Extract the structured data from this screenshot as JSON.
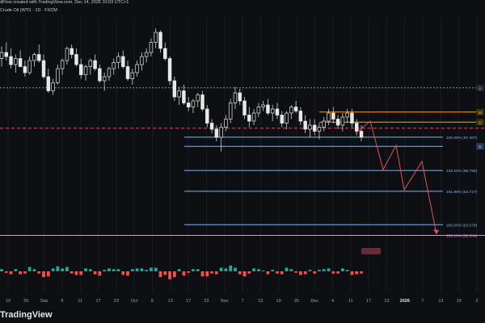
{
  "header": {
    "credit": "dFlow created with TradingView.com, Dec 14, 2025 10:03 UTC+1",
    "symbol": "Crude Oil (WTI) · 1D · FXCM"
  },
  "watermark": "TradingView",
  "colors": {
    "background": "#0e0f12",
    "bull": "#e8e8e8",
    "bear": "#e8e8e8",
    "wick": "#cfcfcf",
    "fib_blue": "#7fb3f5",
    "fib_purple": "#c49bf5",
    "orange": "#f5a623",
    "red_dashed": "#e0505a",
    "projection": "#e0505a",
    "vol_green": "#26a69a",
    "vol_red": "#ef5350"
  },
  "chart_data": {
    "type": "candlestick",
    "x_tick_labels": [
      "19",
      "25",
      "Sep",
      "8",
      "11",
      "17",
      "23",
      "Oct",
      "8",
      "13",
      "17",
      "23",
      "Nov",
      "7",
      "13",
      "19",
      "25",
      "Dec",
      "4",
      "11",
      "17",
      "23",
      "2026",
      "7",
      "13",
      "19",
      "2"
    ],
    "price_levels": [
      {
        "label": "B",
        "value": 59.85,
        "style": "dotted",
        "color": "gray"
      },
      {
        "label": "W",
        "value": 58.65,
        "style": "solid",
        "color": "orange"
      },
      {
        "label": "D",
        "value": 58.15,
        "style": "solid",
        "color": "orange"
      },
      {
        "label": "",
        "value": 57.85,
        "style": "dashed",
        "color": "red"
      },
      {
        "label": "100.00% (57.407)",
        "value": 57.407,
        "style": "solid",
        "color": "blue"
      },
      {
        "label": "B",
        "value": 56.95,
        "style": "solid",
        "color": "blue"
      },
      {
        "label": "138.20% (55.755)",
        "value": 55.755,
        "style": "solid",
        "color": "blue"
      },
      {
        "label": "161.80% (54.727)",
        "value": 54.727,
        "style": "solid",
        "color": "blue"
      },
      {
        "label": "200.00% (53.070)",
        "value": 53.07,
        "style": "solid",
        "color": "blue"
      },
      {
        "label": "138.20% (52.540)",
        "value": 52.54,
        "style": "solid",
        "color": "purple"
      }
    ],
    "candles": [
      [
        61.3,
        61.9,
        60.9,
        61.6
      ],
      [
        61.6,
        62.1,
        61.2,
        61.4
      ],
      [
        61.4,
        61.8,
        60.8,
        61.0
      ],
      [
        61.0,
        61.5,
        60.6,
        61.3
      ],
      [
        61.3,
        61.7,
        60.9,
        60.9
      ],
      [
        60.9,
        61.2,
        60.4,
        60.6
      ],
      [
        60.6,
        61.4,
        60.5,
        61.2
      ],
      [
        61.2,
        61.6,
        60.9,
        61.5
      ],
      [
        61.5,
        62.0,
        61.1,
        61.2
      ],
      [
        61.2,
        61.5,
        60.3,
        60.4
      ],
      [
        60.4,
        60.8,
        59.6,
        59.7
      ],
      [
        59.7,
        60.3,
        59.5,
        60.1
      ],
      [
        60.1,
        61.0,
        60.0,
        60.8
      ],
      [
        60.8,
        61.3,
        60.5,
        61.2
      ],
      [
        61.2,
        61.9,
        61.0,
        61.8
      ],
      [
        61.8,
        62.0,
        61.3,
        61.5
      ],
      [
        61.5,
        61.8,
        60.9,
        61.0
      ],
      [
        61.0,
        61.3,
        60.3,
        60.5
      ],
      [
        60.5,
        61.0,
        60.2,
        60.9
      ],
      [
        60.9,
        61.3,
        60.5,
        61.2
      ],
      [
        61.2,
        61.5,
        60.7,
        60.8
      ],
      [
        60.8,
        61.0,
        60.1,
        60.2
      ],
      [
        60.2,
        60.6,
        59.7,
        60.4
      ],
      [
        60.4,
        60.9,
        60.2,
        60.8
      ],
      [
        60.8,
        61.3,
        60.5,
        61.1
      ],
      [
        61.1,
        61.6,
        60.8,
        61.4
      ],
      [
        61.4,
        61.7,
        60.8,
        60.9
      ],
      [
        60.9,
        61.2,
        60.2,
        60.3
      ],
      [
        60.3,
        60.8,
        60.0,
        60.6
      ],
      [
        60.6,
        61.2,
        60.4,
        61.0
      ],
      [
        61.0,
        61.6,
        60.7,
        61.4
      ],
      [
        61.4,
        61.8,
        61.1,
        61.6
      ],
      [
        61.6,
        62.3,
        61.4,
        62.1
      ],
      [
        62.1,
        62.8,
        61.8,
        62.6
      ],
      [
        62.6,
        62.7,
        61.6,
        61.8
      ],
      [
        61.8,
        62.1,
        61.2,
        61.3
      ],
      [
        61.3,
        61.4,
        60.0,
        60.2
      ],
      [
        60.2,
        60.4,
        59.2,
        59.4
      ],
      [
        59.4,
        59.9,
        59.0,
        59.7
      ],
      [
        59.7,
        60.0,
        59.0,
        59.1
      ],
      [
        59.1,
        59.4,
        58.7,
        58.9
      ],
      [
        58.9,
        59.3,
        58.6,
        59.2
      ],
      [
        59.2,
        59.6,
        58.9,
        59.5
      ],
      [
        59.5,
        59.7,
        58.7,
        58.8
      ],
      [
        58.8,
        59.0,
        57.9,
        58.1
      ],
      [
        58.1,
        58.3,
        57.6,
        57.8
      ],
      [
        57.8,
        58.0,
        57.2,
        57.4
      ],
      [
        57.4,
        58.1,
        56.7,
        57.9
      ],
      [
        57.9,
        58.5,
        57.7,
        58.3
      ],
      [
        58.3,
        59.3,
        58.1,
        59.1
      ],
      [
        59.1,
        59.9,
        58.8,
        59.6
      ],
      [
        59.6,
        59.8,
        59.0,
        59.2
      ],
      [
        59.2,
        59.4,
        58.3,
        58.5
      ],
      [
        58.5,
        58.9,
        57.9,
        58.2
      ],
      [
        58.2,
        58.8,
        58.0,
        58.6
      ],
      [
        58.6,
        59.1,
        58.4,
        58.9
      ],
      [
        58.9,
        59.2,
        58.7,
        59.0
      ],
      [
        59.0,
        59.3,
        58.5,
        58.6
      ],
      [
        58.6,
        59.0,
        58.2,
        58.8
      ],
      [
        58.8,
        59.1,
        58.3,
        58.5
      ],
      [
        58.5,
        58.7,
        57.9,
        58.1
      ],
      [
        58.1,
        58.7,
        57.8,
        58.6
      ],
      [
        58.6,
        59.0,
        58.3,
        58.9
      ],
      [
        58.9,
        59.2,
        58.6,
        58.7
      ],
      [
        58.7,
        58.9,
        58.0,
        58.2
      ],
      [
        58.2,
        58.5,
        57.6,
        57.8
      ],
      [
        57.8,
        58.3,
        57.4,
        58.0
      ],
      [
        58.0,
        58.3,
        57.5,
        57.7
      ],
      [
        57.7,
        58.1,
        57.3,
        57.9
      ],
      [
        57.9,
        58.4,
        57.7,
        58.2
      ],
      [
        58.2,
        58.8,
        58.0,
        58.6
      ],
      [
        58.6,
        58.9,
        58.1,
        58.3
      ],
      [
        58.3,
        58.5,
        57.8,
        58.0
      ],
      [
        58.0,
        58.6,
        57.7,
        58.4
      ],
      [
        58.4,
        58.8,
        58.1,
        58.6
      ],
      [
        58.6,
        58.8,
        57.9,
        58.1
      ],
      [
        58.1,
        58.3,
        57.5,
        57.7
      ],
      [
        57.7,
        58.0,
        57.2,
        57.4
      ]
    ]
  }
}
